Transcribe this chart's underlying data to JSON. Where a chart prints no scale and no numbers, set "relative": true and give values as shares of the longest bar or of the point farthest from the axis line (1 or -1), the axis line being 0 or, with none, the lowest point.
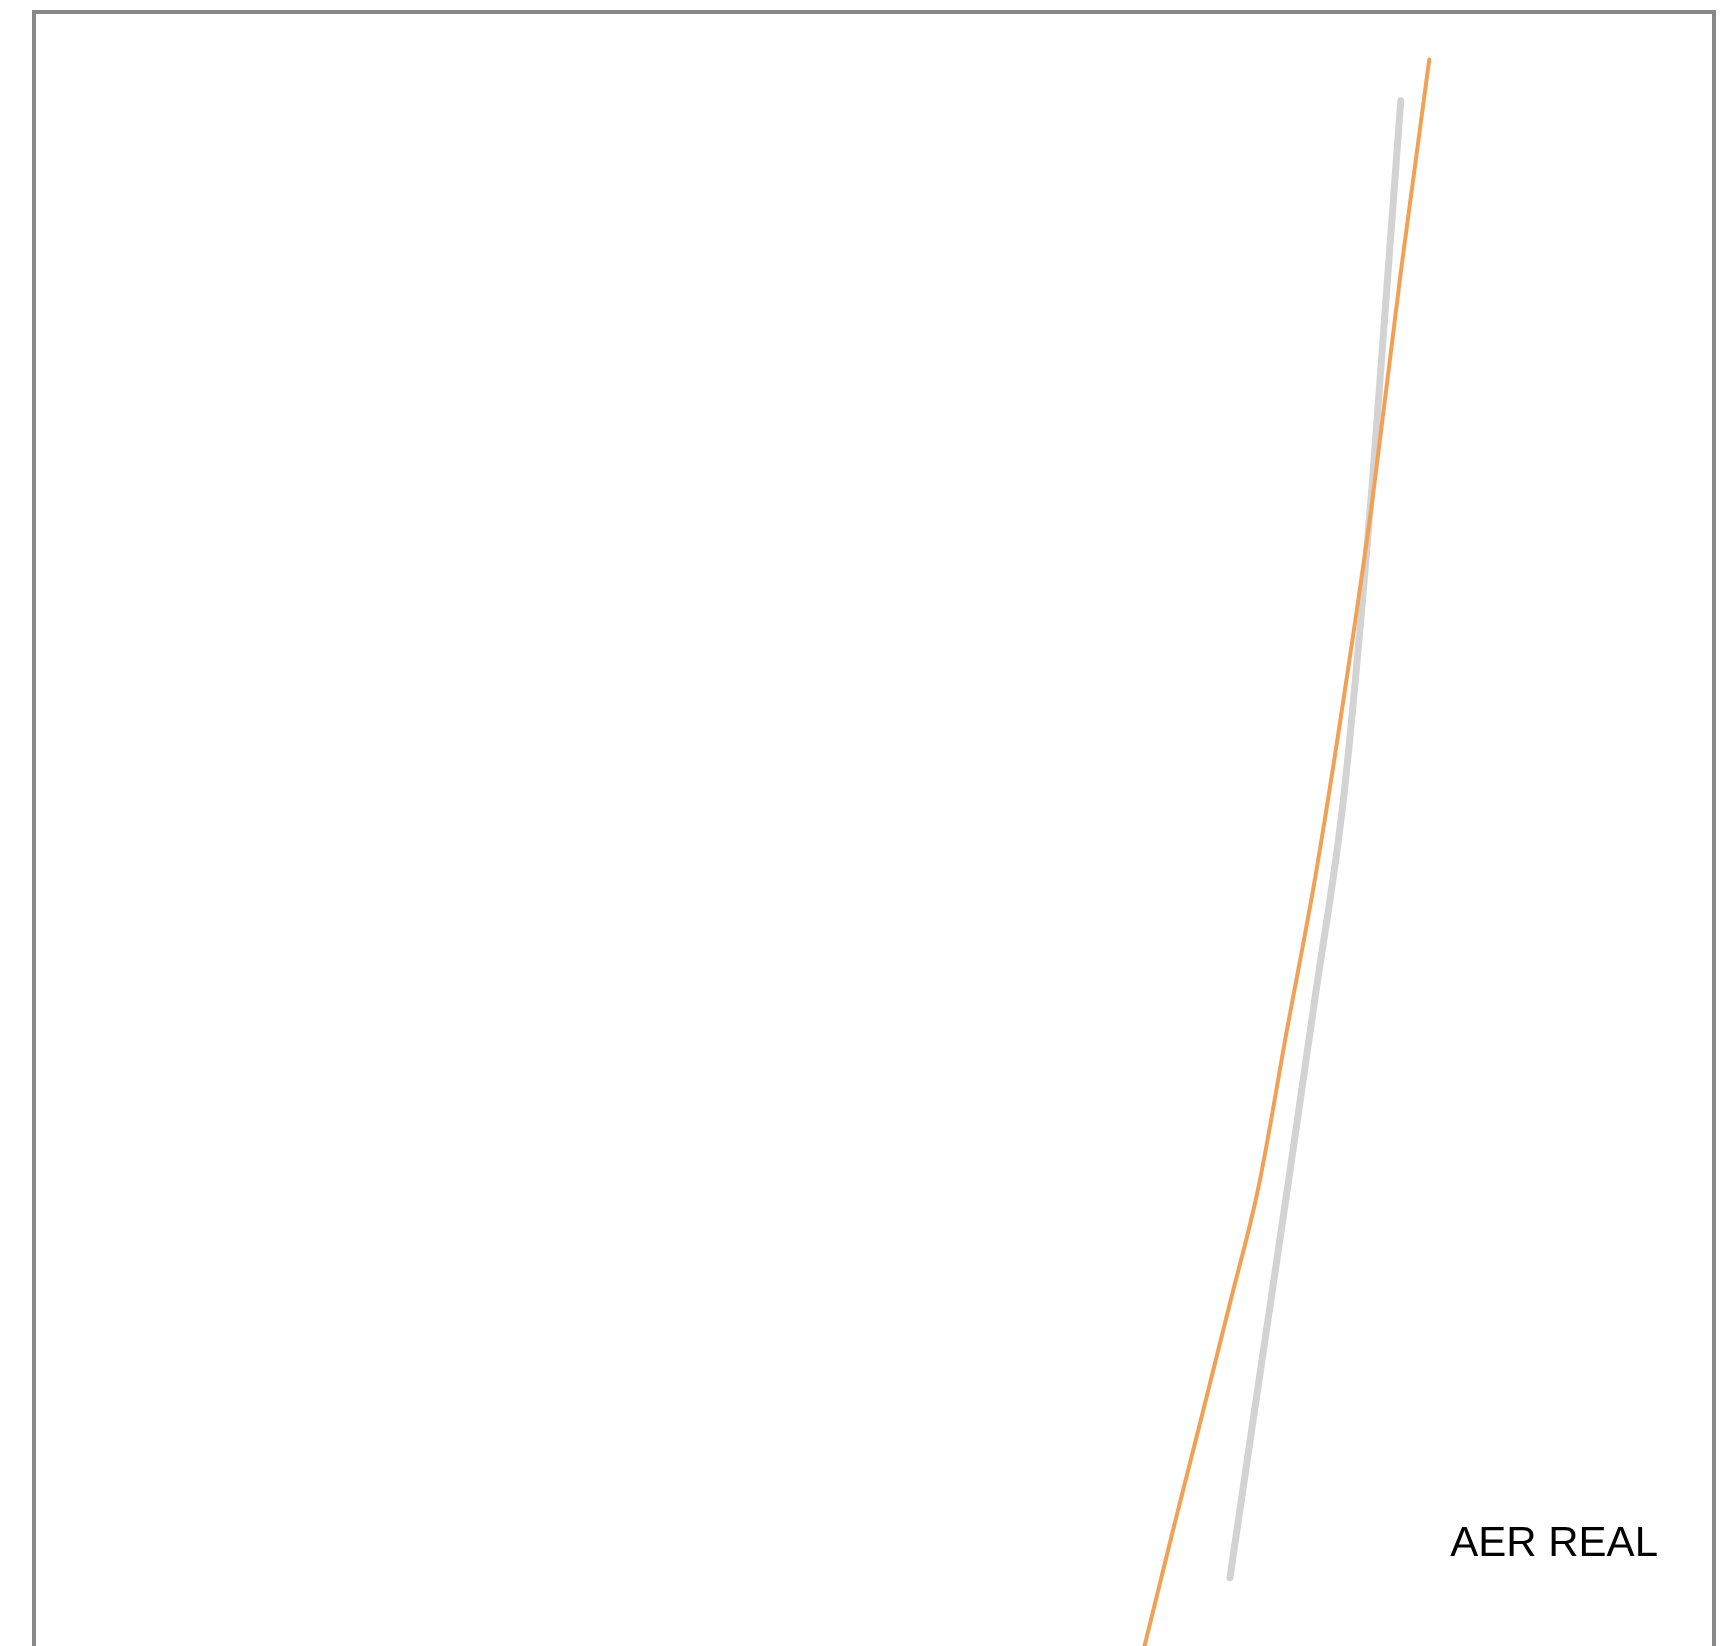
{
  "chart_data": {
    "type": "line",
    "relative": true,
    "categories": [
      null,
      null,
      null,
      null,
      null,
      null,
      null,
      null,
      null,
      null,
      null,
      null,
      null,
      null,
      null,
      null,
      null,
      null,
      null,
      null,
      null,
      null,
      null,
      null,
      null,
      null,
      null,
      null,
      null,
      null,
      null,
      null,
      null,
      null,
      null,
      null,
      null,
      null,
      null,
      null,
      null,
      null,
      null,
      null,
      null,
      null,
      null,
      null,
      null,
      null,
      null,
      null,
      null,
      null,
      null,
      null,
      null,
      null,
      null,
      null
    ],
    "series": [
      {
        "color": "#f2a154",
        "values": [
          null,
          null,
          null,
          null,
          null,
          null,
          null,
          null,
          null,
          null,
          null,
          null,
          null,
          null,
          null,
          null,
          null,
          null,
          null,
          null,
          null,
          null,
          null,
          null,
          null,
          null,
          null,
          null,
          null,
          null,
          null,
          null,
          null,
          null,
          null,
          null,
          null,
          null,
          null,
          0,
          0.073,
          0.144,
          0.216,
          0.289,
          0.388,
          0.485,
          0.598,
          0.722,
          0.866,
          1,
          null,
          null,
          null,
          null,
          null,
          null,
          null,
          null,
          null,
          null
        ]
      },
      {
        "color": "#d3d3d3",
        "values": [
          null,
          null,
          null,
          null,
          null,
          null,
          null,
          null,
          null,
          null,
          null,
          null,
          null,
          null,
          null,
          null,
          null,
          null,
          null,
          null,
          null,
          null,
          null,
          null,
          null,
          null,
          null,
          null,
          null,
          null,
          null,
          null,
          null,
          null,
          null,
          null,
          null,
          null,
          null,
          null,
          null,
          null,
          0.043,
          0.165,
          0.286,
          0.41,
          0.536,
          0.733,
          0.974,
          null,
          null,
          null,
          null,
          null,
          null,
          null,
          null,
          null,
          null,
          null
        ]
      }
    ],
    "annotations": [
      "AER REAL"
    ],
    "grid": false
  }
}
